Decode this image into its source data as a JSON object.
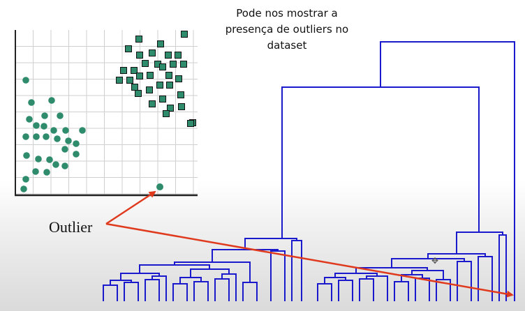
{
  "caption": {
    "line1": "Pode nos mostrar a",
    "line2": "presença de outliers no",
    "line3": "dataset"
  },
  "outlier_label": "Outlier",
  "colors": {
    "cluster_point": "#2e8b6b",
    "cluster_square_fill": "#2e8b6b",
    "cluster_square_border": "#111111",
    "dendrogram": "#1a1acc",
    "arrow": "#e03a1e",
    "grid": "#cfcfcf",
    "axis": "#222222"
  },
  "icons": {
    "cursor": "move-cursor-icon"
  }
}
